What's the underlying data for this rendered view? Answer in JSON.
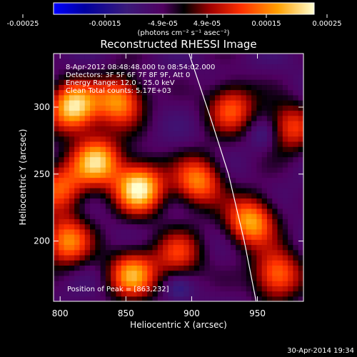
{
  "chart_data": {
    "type": "heatmap",
    "title": "Reconstructed RHESSI Image",
    "xlabel": "Heliocentric X (arcsec)",
    "ylabel": "Heliocentric Y (arcsec)",
    "xlim": [
      795,
      985
    ],
    "ylim": [
      155,
      340
    ],
    "xticks": [
      "800",
      "850",
      "900",
      "950"
    ],
    "yticks": [
      "200",
      "250",
      "300"
    ],
    "colorbar": {
      "ticks": [
        "-0.00025",
        "-0.00015",
        "-4.9e-05",
        "4.9e-05",
        "0.00015",
        "0.00025"
      ],
      "unit": "(photons cm⁻² s⁻¹ asec⁻²)"
    },
    "annotations": [
      "8-Apr-2012 08:48:48.000 to 08:54:02.000",
      "Detectors: 3F 5F 6F 7F 8F 9F, Att 0",
      "Energy Range: 12.0 - 25.0 keV",
      "Clean    Total counts: 5.17E+03"
    ],
    "peak_label": "Position of Peak = [863,232]",
    "peak": [
      863,
      232
    ],
    "limb_points": [
      [
        898,
        340
      ],
      [
        915,
        290
      ],
      [
        928,
        250
      ],
      [
        940,
        200
      ],
      [
        949,
        155
      ]
    ],
    "hotspots": [
      {
        "x": 860,
        "y": 240,
        "v": 1.0
      },
      {
        "x": 828,
        "y": 260,
        "v": 0.85
      },
      {
        "x": 810,
        "y": 300,
        "v": 0.95
      },
      {
        "x": 845,
        "y": 305,
        "v": 0.75
      },
      {
        "x": 805,
        "y": 200,
        "v": 0.7
      },
      {
        "x": 855,
        "y": 175,
        "v": 0.75
      },
      {
        "x": 905,
        "y": 245,
        "v": 0.7
      },
      {
        "x": 930,
        "y": 300,
        "v": 0.6
      },
      {
        "x": 945,
        "y": 215,
        "v": 0.8
      },
      {
        "x": 975,
        "y": 285,
        "v": 0.55
      },
      {
        "x": 965,
        "y": 175,
        "v": 0.7
      },
      {
        "x": 890,
        "y": 190,
        "v": 0.5
      },
      {
        "x": 800,
        "y": 240,
        "v": 0.6
      }
    ]
  },
  "footer": {
    "timestamp": "30-Apr-2014 19:34"
  }
}
